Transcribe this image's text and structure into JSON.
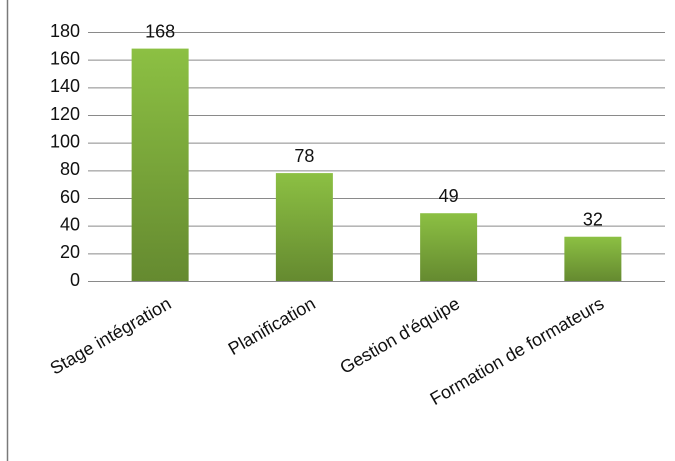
{
  "chart_data": {
    "type": "bar",
    "categories": [
      "Stage intégration",
      "Planification",
      "Gestion d'équipe",
      "Formation de formateurs"
    ],
    "values": [
      168,
      78,
      49,
      32
    ],
    "color": "#8cc043",
    "ylim": [
      0,
      180
    ],
    "yticks": [
      0,
      20,
      40,
      60,
      80,
      100,
      120,
      140,
      160,
      180
    ],
    "grid": true
  }
}
